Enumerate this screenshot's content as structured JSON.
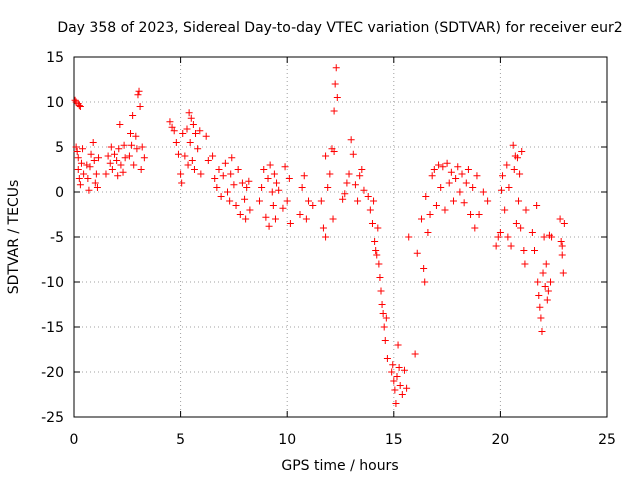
{
  "chart_data": {
    "type": "scatter",
    "title": "Day 358 of 2023, Sidereal Day-to-day VTEC variation (SDTVAR) for receiver eur2",
    "xlabel": "GPS time / hours",
    "ylabel": "SDTVAR / TECUs",
    "xlim": [
      0,
      25
    ],
    "ylim": [
      -25,
      15
    ],
    "xticks": [
      "0",
      "5",
      "10",
      "15",
      "20",
      "25"
    ],
    "yticks": [
      "15",
      "10",
      "5",
      "0",
      "-5",
      "-10",
      "-15",
      "-20",
      "-25"
    ],
    "grid": true,
    "marker": "plus",
    "color": "#ff0000",
    "series": [
      {
        "name": "SDTVAR",
        "points": [
          [
            0.05,
            10.2
          ],
          [
            0.1,
            10.0
          ],
          [
            0.2,
            9.8
          ],
          [
            0.25,
            9.6
          ],
          [
            0.3,
            9.5
          ],
          [
            0.1,
            5.0
          ],
          [
            0.15,
            4.5
          ],
          [
            0.2,
            3.8
          ],
          [
            0.2,
            2.5
          ],
          [
            0.25,
            1.5
          ],
          [
            0.3,
            0.8
          ],
          [
            0.35,
            3.2
          ],
          [
            0.4,
            4.8
          ],
          [
            0.45,
            2.0
          ],
          [
            0.6,
            3.0
          ],
          [
            0.65,
            1.5
          ],
          [
            0.7,
            0.2
          ],
          [
            0.75,
            2.8
          ],
          [
            0.8,
            4.2
          ],
          [
            0.9,
            5.5
          ],
          [
            0.95,
            3.5
          ],
          [
            1.0,
            1.0
          ],
          [
            1.05,
            2.0
          ],
          [
            1.1,
            0.5
          ],
          [
            1.15,
            3.8
          ],
          [
            1.5,
            2.0
          ],
          [
            1.6,
            4.0
          ],
          [
            1.7,
            3.2
          ],
          [
            1.75,
            5.0
          ],
          [
            1.8,
            2.5
          ],
          [
            1.9,
            4.2
          ],
          [
            2.0,
            3.5
          ],
          [
            2.05,
            1.8
          ],
          [
            2.1,
            4.8
          ],
          [
            2.2,
            3.0
          ],
          [
            2.3,
            2.2
          ],
          [
            2.35,
            5.2
          ],
          [
            2.4,
            3.8
          ],
          [
            2.15,
            7.5
          ],
          [
            2.6,
            4.0
          ],
          [
            2.65,
            6.5
          ],
          [
            2.7,
            5.2
          ],
          [
            2.75,
            8.5
          ],
          [
            2.8,
            3.0
          ],
          [
            2.9,
            6.2
          ],
          [
            2.95,
            4.8
          ],
          [
            3.0,
            10.8
          ],
          [
            3.05,
            11.2
          ],
          [
            3.1,
            9.5
          ],
          [
            3.15,
            2.5
          ],
          [
            3.2,
            5.0
          ],
          [
            3.3,
            3.8
          ],
          [
            4.5,
            7.8
          ],
          [
            4.6,
            7.2
          ],
          [
            4.7,
            6.8
          ],
          [
            4.8,
            5.5
          ],
          [
            4.9,
            4.2
          ],
          [
            5.0,
            2.0
          ],
          [
            5.05,
            1.0
          ],
          [
            5.1,
            6.5
          ],
          [
            5.2,
            4.0
          ],
          [
            5.3,
            7.0
          ],
          [
            5.35,
            3.0
          ],
          [
            5.4,
            8.8
          ],
          [
            5.45,
            5.5
          ],
          [
            5.5,
            8.2
          ],
          [
            5.55,
            3.5
          ],
          [
            5.6,
            7.5
          ],
          [
            5.65,
            2.5
          ],
          [
            5.7,
            6.5
          ],
          [
            5.8,
            4.8
          ],
          [
            5.9,
            6.8
          ],
          [
            5.95,
            2.0
          ],
          [
            6.2,
            6.2
          ],
          [
            6.3,
            3.5
          ],
          [
            6.5,
            4.0
          ],
          [
            6.6,
            1.5
          ],
          [
            6.7,
            0.5
          ],
          [
            6.8,
            2.5
          ],
          [
            6.9,
            -0.5
          ],
          [
            7.0,
            1.8
          ],
          [
            7.1,
            3.2
          ],
          [
            7.2,
            0.0
          ],
          [
            7.3,
            -1.0
          ],
          [
            7.35,
            2.0
          ],
          [
            7.4,
            3.8
          ],
          [
            7.5,
            0.8
          ],
          [
            7.6,
            -1.5
          ],
          [
            7.7,
            2.5
          ],
          [
            7.8,
            -2.5
          ],
          [
            7.9,
            1.0
          ],
          [
            8.0,
            -0.8
          ],
          [
            8.05,
            -3.0
          ],
          [
            8.1,
            0.5
          ],
          [
            8.2,
            1.2
          ],
          [
            8.25,
            -2.0
          ],
          [
            8.7,
            -1.0
          ],
          [
            8.8,
            0.5
          ],
          [
            8.9,
            2.5
          ],
          [
            9.0,
            -2.8
          ],
          [
            9.1,
            1.5
          ],
          [
            9.15,
            -3.8
          ],
          [
            9.2,
            3.0
          ],
          [
            9.3,
            0.0
          ],
          [
            9.35,
            -1.5
          ],
          [
            9.4,
            2.0
          ],
          [
            9.45,
            -3.0
          ],
          [
            9.5,
            1.0
          ],
          [
            9.6,
            0.2
          ],
          [
            9.8,
            -1.8
          ],
          [
            9.9,
            2.8
          ],
          [
            10.0,
            -1.0
          ],
          [
            10.1,
            1.5
          ],
          [
            10.15,
            -3.5
          ],
          [
            10.6,
            -2.5
          ],
          [
            10.7,
            0.5
          ],
          [
            10.8,
            1.8
          ],
          [
            10.9,
            -3.0
          ],
          [
            11.0,
            -1.0
          ],
          [
            11.2,
            -1.5
          ],
          [
            11.6,
            -1.0
          ],
          [
            11.7,
            -4.0
          ],
          [
            11.8,
            -5.0
          ],
          [
            11.9,
            0.5
          ],
          [
            12.0,
            2.0
          ],
          [
            11.8,
            4.0
          ],
          [
            12.1,
            4.8
          ],
          [
            12.15,
            -3.0
          ],
          [
            12.2,
            9.0
          ],
          [
            12.25,
            12.0
          ],
          [
            12.3,
            13.8
          ],
          [
            12.35,
            10.5
          ],
          [
            12.2,
            4.5
          ],
          [
            12.6,
            -0.8
          ],
          [
            12.7,
            -0.2
          ],
          [
            12.8,
            1.0
          ],
          [
            12.9,
            2.0
          ],
          [
            13.0,
            5.8
          ],
          [
            13.1,
            4.2
          ],
          [
            13.2,
            0.8
          ],
          [
            13.3,
            -1.0
          ],
          [
            13.4,
            1.8
          ],
          [
            13.5,
            2.5
          ],
          [
            13.6,
            0.2
          ],
          [
            13.8,
            -0.5
          ],
          [
            13.9,
            -2.0
          ],
          [
            14.0,
            -3.5
          ],
          [
            14.05,
            -1.0
          ],
          [
            14.1,
            -5.5
          ],
          [
            14.15,
            -6.5
          ],
          [
            14.2,
            -7.0
          ],
          [
            14.25,
            -4.0
          ],
          [
            14.3,
            -8.0
          ],
          [
            14.35,
            -9.5
          ],
          [
            14.4,
            -11.0
          ],
          [
            14.45,
            -12.5
          ],
          [
            14.5,
            -13.5
          ],
          [
            14.55,
            -15.0
          ],
          [
            14.6,
            -16.5
          ],
          [
            14.65,
            -14.0
          ],
          [
            14.7,
            -18.5
          ],
          [
            14.9,
            -20.0
          ],
          [
            14.95,
            -19.2
          ],
          [
            15.0,
            -21.0
          ],
          [
            15.05,
            -22.0
          ],
          [
            15.1,
            -23.5
          ],
          [
            15.15,
            -20.5
          ],
          [
            15.2,
            -17.0
          ],
          [
            15.25,
            -19.5
          ],
          [
            15.3,
            -21.5
          ],
          [
            15.4,
            -22.5
          ],
          [
            15.5,
            -19.8
          ],
          [
            15.6,
            -21.8
          ],
          [
            15.7,
            -5.0
          ],
          [
            16.0,
            -18.0
          ],
          [
            16.1,
            -6.8
          ],
          [
            16.3,
            -3.0
          ],
          [
            16.4,
            -8.5
          ],
          [
            16.45,
            -10.0
          ],
          [
            16.5,
            -0.5
          ],
          [
            16.6,
            -4.5
          ],
          [
            16.7,
            -2.5
          ],
          [
            16.8,
            1.8
          ],
          [
            16.9,
            2.5
          ],
          [
            17.0,
            -1.5
          ],
          [
            17.1,
            3.0
          ],
          [
            17.2,
            0.5
          ],
          [
            17.3,
            2.8
          ],
          [
            17.4,
            -2.0
          ],
          [
            17.5,
            3.2
          ],
          [
            17.6,
            1.0
          ],
          [
            17.7,
            2.2
          ],
          [
            17.8,
            -1.0
          ],
          [
            17.9,
            1.5
          ],
          [
            18.0,
            2.8
          ],
          [
            18.1,
            0.0
          ],
          [
            18.2,
            2.0
          ],
          [
            18.3,
            -1.2
          ],
          [
            18.4,
            1.0
          ],
          [
            18.5,
            2.5
          ],
          [
            18.6,
            -2.5
          ],
          [
            18.7,
            0.5
          ],
          [
            18.8,
            -4.0
          ],
          [
            18.9,
            1.8
          ],
          [
            19.0,
            -2.5
          ],
          [
            19.2,
            0.0
          ],
          [
            19.4,
            -1.0
          ],
          [
            19.8,
            -6.0
          ],
          [
            19.9,
            -5.0
          ],
          [
            20.0,
            -4.5
          ],
          [
            20.05,
            0.2
          ],
          [
            20.1,
            1.8
          ],
          [
            20.2,
            -2.0
          ],
          [
            20.3,
            3.0
          ],
          [
            20.35,
            -5.0
          ],
          [
            20.4,
            0.5
          ],
          [
            20.5,
            -6.0
          ],
          [
            20.6,
            5.2
          ],
          [
            20.65,
            2.5
          ],
          [
            20.7,
            4.0
          ],
          [
            20.75,
            -3.5
          ],
          [
            20.8,
            3.8
          ],
          [
            20.85,
            -1.0
          ],
          [
            20.9,
            2.0
          ],
          [
            20.95,
            -4.0
          ],
          [
            21.0,
            4.5
          ],
          [
            21.1,
            -6.5
          ],
          [
            21.15,
            -8.0
          ],
          [
            21.2,
            -2.0
          ],
          [
            21.5,
            -4.5
          ],
          [
            21.6,
            -6.5
          ],
          [
            21.7,
            -1.5
          ],
          [
            21.75,
            -10.0
          ],
          [
            21.8,
            -11.5
          ],
          [
            21.85,
            -12.8
          ],
          [
            21.9,
            -14.0
          ],
          [
            21.95,
            -15.5
          ],
          [
            22.0,
            -9.0
          ],
          [
            22.05,
            -5.0
          ],
          [
            22.1,
            -10.5
          ],
          [
            22.15,
            -8.0
          ],
          [
            22.2,
            -12.0
          ],
          [
            22.25,
            -11.0
          ],
          [
            22.3,
            -4.8
          ],
          [
            22.35,
            -10.0
          ],
          [
            22.4,
            -5.0
          ],
          [
            22.8,
            -3.0
          ],
          [
            22.85,
            -5.5
          ],
          [
            22.9,
            -6.0
          ],
          [
            22.95,
            -9.0
          ],
          [
            23.0,
            -3.5
          ],
          [
            22.9,
            -7.0
          ]
        ]
      }
    ]
  }
}
